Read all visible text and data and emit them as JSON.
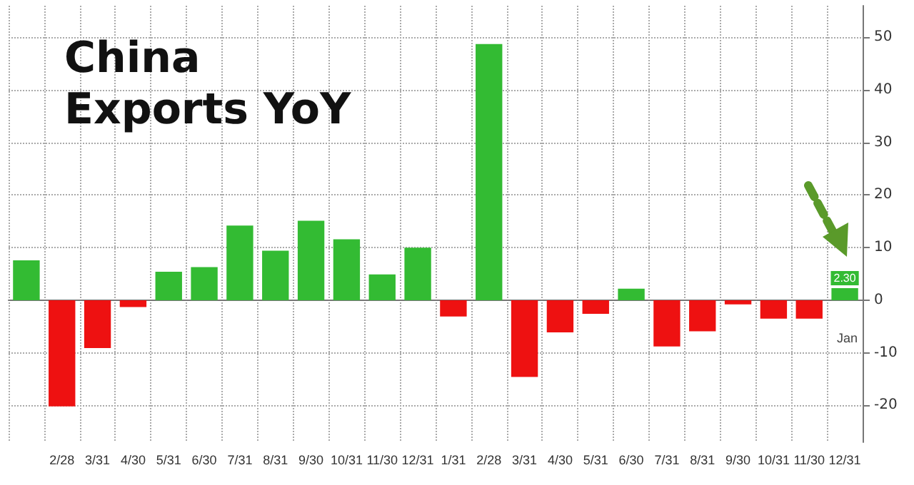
{
  "chart_data": {
    "type": "bar",
    "title": "China\nExports YoY",
    "xlabel": "Jan",
    "categories": [
      null,
      "2/28",
      "3/31",
      "4/30",
      "5/31",
      "6/30",
      "7/31",
      "8/31",
      "9/30",
      "10/31",
      "11/30",
      "12/31",
      "1/31",
      "2/28",
      "3/31",
      "4/30",
      "5/31",
      "6/30",
      "7/31",
      "8/31",
      "9/30",
      "10/31",
      "11/30",
      "12/31"
    ],
    "values": [
      7.6,
      -20.2,
      -9.1,
      -1.3,
      5.4,
      6.3,
      14.2,
      9.4,
      15.1,
      11.6,
      4.9,
      10.0,
      -3.1,
      48.7,
      -14.6,
      -6.1,
      -2.6,
      2.2,
      -8.8,
      -5.9,
      -0.8,
      -3.5,
      -3.5,
      2.3
    ],
    "colors": [
      "#33bb33",
      "#ee1111",
      "#ee1111",
      "#ee1111",
      "#33bb33",
      "#33bb33",
      "#33bb33",
      "#33bb33",
      "#33bb33",
      "#33bb33",
      "#33bb33",
      "#33bb33",
      "#ee1111",
      "#33bb33",
      "#ee1111",
      "#ee1111",
      "#ee1111",
      "#33bb33",
      "#ee1111",
      "#ee1111",
      "#ee1111",
      "#ee1111",
      "#ee1111",
      "#33bb33"
    ],
    "value_labels": [
      null,
      null,
      null,
      null,
      null,
      null,
      null,
      null,
      null,
      null,
      null,
      null,
      null,
      null,
      null,
      null,
      null,
      null,
      null,
      null,
      null,
      null,
      null,
      "2.30"
    ],
    "ylim": [
      -27,
      56
    ],
    "yticks": [
      -20,
      -10,
      0,
      10,
      20,
      30,
      40,
      50
    ],
    "grid": true
  }
}
